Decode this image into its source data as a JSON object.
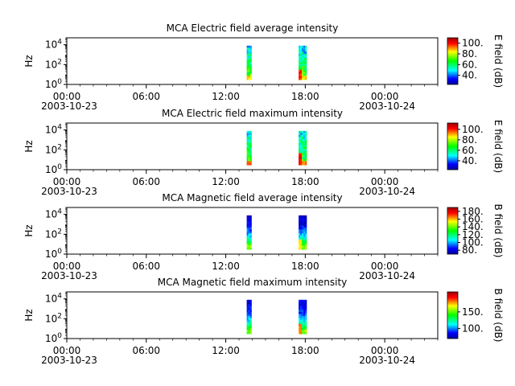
{
  "chart_data": [
    {
      "type": "heatmap",
      "title": "MCA  Electric field average intensity",
      "ylabel": "Hz",
      "yscale": "log",
      "ylim": [
        1,
        50000
      ],
      "yticks": [
        {
          "exp": "0",
          "value": 1
        },
        {
          "exp": "2",
          "value": 100
        },
        {
          "exp": "4",
          "value": 10000
        }
      ],
      "xlim": [
        "2003-10-23 00:00",
        "2003-10-24 04:00"
      ],
      "xticks": [
        "00:00\n2003-10-23",
        "06:00",
        "12:00",
        "18:00",
        "00:00\n2003-10-24"
      ],
      "colorbar": {
        "label": "E field (dB)",
        "range": [
          23,
          110
        ],
        "ticks": [
          "40.",
          "60.",
          "80.",
          "100."
        ],
        "tick_values": [
          40,
          60,
          80,
          100
        ]
      },
      "data_intervals": [
        [
          "13:35",
          "13:55"
        ],
        [
          "17:30",
          "18:05"
        ]
      ],
      "palette": "avg-e"
    },
    {
      "type": "heatmap",
      "title": "MCA  Electric field maximum intensity",
      "ylabel": "Hz",
      "yscale": "log",
      "ylim": [
        1,
        50000
      ],
      "yticks": [
        {
          "exp": "0",
          "value": 1
        },
        {
          "exp": "2",
          "value": 100
        },
        {
          "exp": "4",
          "value": 10000
        }
      ],
      "xlim": [
        "2003-10-23 00:00",
        "2003-10-24 04:00"
      ],
      "xticks": [
        "00:00\n2003-10-23",
        "06:00",
        "12:00",
        "18:00",
        "00:00\n2003-10-24"
      ],
      "colorbar": {
        "label": "E field (dB)",
        "range": [
          23,
          112
        ],
        "ticks": [
          "40.",
          "60.",
          "80.",
          "100."
        ],
        "tick_values": [
          40,
          60,
          80,
          100
        ]
      },
      "data_intervals": [
        [
          "13:35",
          "13:55"
        ],
        [
          "17:30",
          "18:05"
        ]
      ],
      "palette": "max-e"
    },
    {
      "type": "heatmap",
      "title": "MCA  Magnetic field average intensity",
      "ylabel": "Hz",
      "yscale": "log",
      "ylim": [
        1,
        50000
      ],
      "yticks": [
        {
          "exp": "0",
          "value": 1
        },
        {
          "exp": "2",
          "value": 100
        },
        {
          "exp": "4",
          "value": 10000
        }
      ],
      "xlim": [
        "2003-10-23 00:00",
        "2003-10-24 04:00"
      ],
      "xticks": [
        "00:00\n2003-10-23",
        "06:00",
        "12:00",
        "18:00",
        "00:00\n2003-10-24"
      ],
      "colorbar": {
        "label": "B field (dB)",
        "range": [
          70,
          190
        ],
        "ticks": [
          "80.",
          "100.",
          "120.",
          "140.",
          "160.",
          "180."
        ],
        "tick_values": [
          80,
          100,
          120,
          140,
          160,
          180
        ]
      },
      "data_intervals": [
        [
          "13:35",
          "13:55"
        ],
        [
          "17:30",
          "18:05"
        ]
      ],
      "palette": "avg-b"
    },
    {
      "type": "heatmap",
      "title": "MCA  Magnetic field maximum intensity",
      "ylabel": "Hz",
      "yscale": "log",
      "ylim": [
        1,
        50000
      ],
      "yticks": [
        {
          "exp": "0",
          "value": 1
        },
        {
          "exp": "2",
          "value": 100
        },
        {
          "exp": "4",
          "value": 10000
        }
      ],
      "xlim": [
        "2003-10-23 00:00",
        "2003-10-24 04:00"
      ],
      "xticks": [
        "00:00\n2003-10-23",
        "06:00",
        "12:00",
        "18:00",
        "00:00\n2003-10-24"
      ],
      "colorbar": {
        "label": "B field (dB)",
        "range": [
          70,
          210
        ],
        "ticks": [
          "100.",
          "150."
        ],
        "tick_values": [
          100,
          150
        ]
      },
      "data_intervals": [
        [
          "13:35",
          "13:55"
        ],
        [
          "17:30",
          "18:05"
        ]
      ],
      "palette": "max-b"
    }
  ]
}
